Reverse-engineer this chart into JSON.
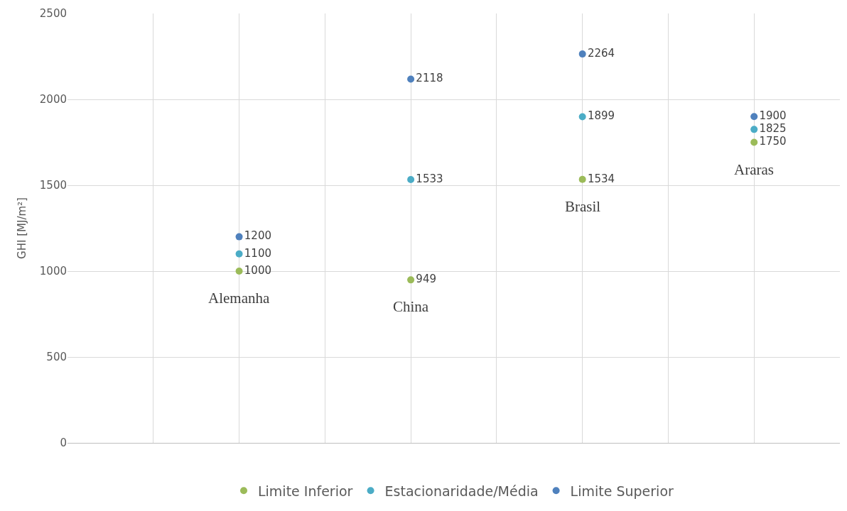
{
  "chart_data": {
    "type": "scatter",
    "ylabel": "GHI [MJ/m²]",
    "categories": [
      null,
      null,
      null,
      null
    ],
    "series": [
      {
        "name": "Limite Inferior",
        "color": "#9bbb59",
        "values": [
          1000,
          949,
          1534,
          1750
        ]
      },
      {
        "name": "Estacionaridade/Média",
        "color": "#4bacc6",
        "values": [
          1100,
          1533,
          1899,
          1825
        ]
      },
      {
        "name": "Limite Superior",
        "color": "#4f81bd",
        "values": [
          1200,
          2118,
          2264,
          1900
        ]
      }
    ],
    "annotations": [
      "Alemanha",
      "China",
      "Brasil",
      "Araras"
    ],
    "ylim": [
      0,
      2500
    ],
    "yticks": [
      0,
      500,
      1000,
      1500,
      2000,
      2500
    ],
    "tick_labels": "y",
    "grid": true,
    "legend": "bottom",
    "marker": "circle",
    "data_labels": true
  }
}
